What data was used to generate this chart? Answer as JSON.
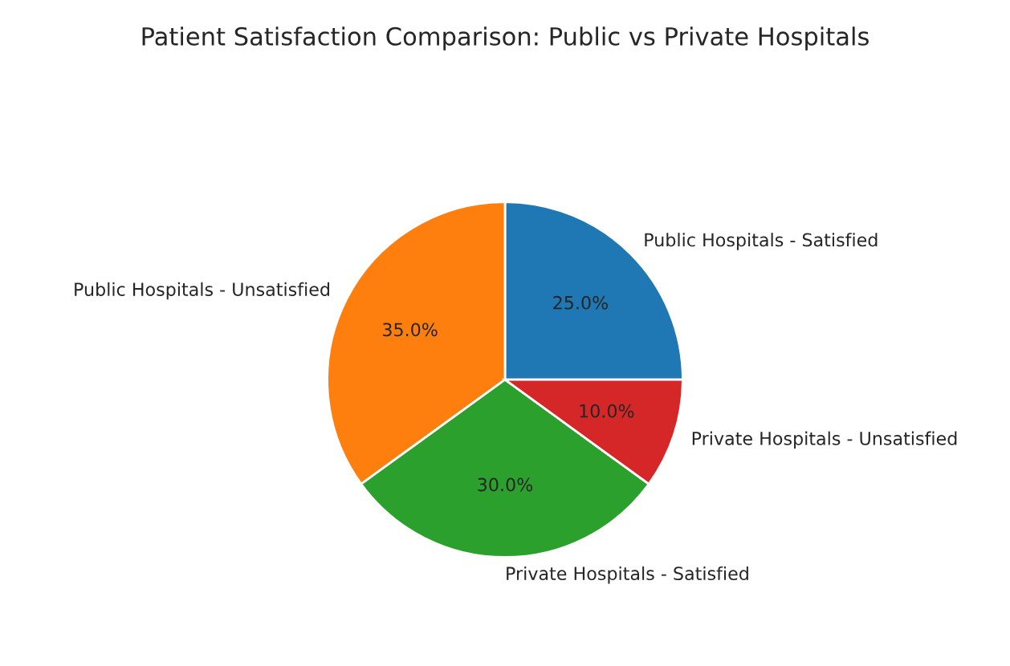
{
  "chart_data": {
    "type": "pie",
    "title": "Patient Satisfaction Comparison: Public vs Private Hospitals",
    "categories": [
      "Public Hospitals - Satisfied",
      "Public Hospitals - Unsatisfied",
      "Private Hospitals - Satisfied",
      "Private Hospitals - Unsatisfied"
    ],
    "values": [
      25,
      35,
      30,
      10
    ],
    "colors": [
      "#1f77b4",
      "#ff7f0e",
      "#2ca02c",
      "#d62728"
    ],
    "value_labels": [
      "25.0%",
      "35.0%",
      "30.0%",
      "10.0%"
    ]
  }
}
